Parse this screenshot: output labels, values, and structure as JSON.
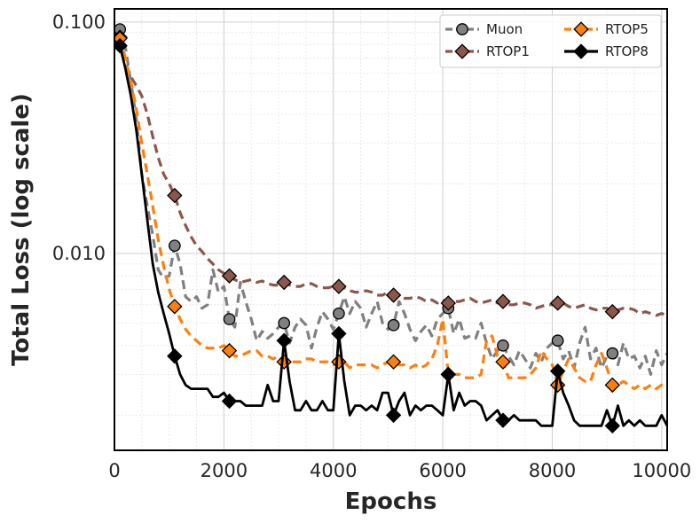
{
  "chart_data": {
    "type": "line",
    "xlabel": "Epochs",
    "ylabel": "Total Loss (log scale)",
    "yscale": "log",
    "xlim": [
      0,
      10100
    ],
    "ylim": [
      0.00141,
      0.114
    ],
    "grid": true,
    "legend_position": "top-right",
    "legend_columns": 2,
    "x_ticks": [
      {
        "value": 0,
        "label": "0"
      },
      {
        "value": 2000,
        "label": "2000"
      },
      {
        "value": 4000,
        "label": "4000"
      },
      {
        "value": 6000,
        "label": "6000"
      },
      {
        "value": 8000,
        "label": "8000"
      },
      {
        "value": 10000,
        "label": "10000"
      }
    ],
    "y_ticks": [
      {
        "value": 0.01,
        "label": "0.010"
      },
      {
        "value": 0.1,
        "label": "0.100"
      }
    ],
    "series": [
      {
        "name": "Muon",
        "color": "#808080",
        "marker": "circle",
        "marker_color": "#808080",
        "dash": "dashed",
        "x": [
          100,
          200,
          300,
          400,
          500,
          600,
          700,
          800,
          900,
          1000,
          1100,
          1200,
          1300,
          1400,
          1500,
          1600,
          1700,
          1800,
          1900,
          2000,
          2100,
          2200,
          2300,
          2400,
          2500,
          2600,
          2700,
          2800,
          2900,
          3000,
          3100,
          3200,
          3300,
          3400,
          3500,
          3600,
          3700,
          3800,
          3900,
          4000,
          4100,
          4200,
          4300,
          4400,
          4500,
          4600,
          4700,
          4800,
          4900,
          5000,
          5100,
          5200,
          5300,
          5400,
          5500,
          5600,
          5700,
          5800,
          5900,
          6000,
          6100,
          6200,
          6300,
          6400,
          6500,
          6600,
          6700,
          6800,
          6900,
          7000,
          7100,
          7200,
          7300,
          7400,
          7500,
          7600,
          7700,
          7800,
          7900,
          8000,
          8100,
          8200,
          8300,
          8400,
          8500,
          8600,
          8700,
          8800,
          8900,
          9000,
          9100,
          9200,
          9300,
          9400,
          9500,
          9600,
          9700,
          9800,
          9900,
          10000,
          10100
        ],
        "values": [
          0.093,
          0.078,
          0.055,
          0.038,
          0.022,
          0.016,
          0.012,
          0.0085,
          0.0078,
          0.008,
          0.0108,
          0.009,
          0.0065,
          0.0062,
          0.0065,
          0.0058,
          0.006,
          0.0085,
          0.0068,
          0.0072,
          0.0052,
          0.0048,
          0.0075,
          0.0062,
          0.0052,
          0.0042,
          0.0046,
          0.0043,
          0.0045,
          0.0048,
          0.005,
          0.0041,
          0.0048,
          0.0052,
          0.0049,
          0.0039,
          0.0048,
          0.0056,
          0.0052,
          0.0047,
          0.0055,
          0.0065,
          0.0055,
          0.0062,
          0.0058,
          0.0048,
          0.0055,
          0.0062,
          0.005,
          0.0047,
          0.0049,
          0.0062,
          0.0055,
          0.0047,
          0.0042,
          0.0046,
          0.0049,
          0.0044,
          0.0052,
          0.0055,
          0.0058,
          0.0045,
          0.0052,
          0.0043,
          0.0044,
          0.0043,
          0.005,
          0.0041,
          0.0035,
          0.0038,
          0.004,
          0.0036,
          0.0033,
          0.0038,
          0.0035,
          0.0032,
          0.0037,
          0.0034,
          0.0039,
          0.0041,
          0.0042,
          0.0035,
          0.0038,
          0.0032,
          0.0041,
          0.0048,
          0.0035,
          0.0039,
          0.0032,
          0.0036,
          0.0037,
          0.0033,
          0.0041,
          0.0035,
          0.0036,
          0.0032,
          0.0036,
          0.003,
          0.0038,
          0.0033,
          0.0037
        ],
        "markers_at": [
          100,
          1100,
          2100,
          3100,
          4100,
          5100,
          6100,
          7100,
          8100,
          9100
        ]
      },
      {
        "name": "RTOP1",
        "color": "#8c564b",
        "marker": "diamond",
        "marker_color": "#8c564b",
        "dash": "dashed",
        "x": [
          100,
          200,
          300,
          400,
          500,
          600,
          700,
          800,
          900,
          1000,
          1100,
          1200,
          1300,
          1400,
          1500,
          1600,
          1700,
          1800,
          1900,
          2000,
          2100,
          2200,
          2300,
          2400,
          2500,
          2600,
          2700,
          2800,
          2900,
          3000,
          3100,
          3200,
          3300,
          3400,
          3500,
          3600,
          3700,
          3800,
          3900,
          4000,
          4100,
          4200,
          4300,
          4400,
          4500,
          4600,
          4700,
          4800,
          4900,
          5000,
          5100,
          5200,
          5300,
          5400,
          5500,
          5600,
          5700,
          5800,
          5900,
          6000,
          6100,
          6200,
          6300,
          6400,
          6500,
          6600,
          6700,
          6800,
          6900,
          7000,
          7100,
          7200,
          7300,
          7400,
          7500,
          7600,
          7700,
          7800,
          7900,
          8000,
          8100,
          8200,
          8300,
          8400,
          8500,
          8600,
          8700,
          8800,
          8900,
          9000,
          9100,
          9200,
          9300,
          9400,
          9500,
          9600,
          9700,
          9800,
          9900,
          10000,
          10100
        ],
        "values": [
          0.086,
          0.065,
          0.058,
          0.053,
          0.048,
          0.04,
          0.032,
          0.026,
          0.022,
          0.02,
          0.0178,
          0.015,
          0.0132,
          0.0118,
          0.0108,
          0.0102,
          0.0095,
          0.009,
          0.0085,
          0.0082,
          0.008,
          0.0077,
          0.0075,
          0.0076,
          0.0077,
          0.0075,
          0.0076,
          0.0074,
          0.0073,
          0.0073,
          0.0075,
          0.0073,
          0.0072,
          0.0072,
          0.0074,
          0.0074,
          0.0072,
          0.0071,
          0.0071,
          0.0072,
          0.0072,
          0.0071,
          0.0069,
          0.0068,
          0.0068,
          0.0069,
          0.0068,
          0.0066,
          0.0066,
          0.0068,
          0.0066,
          0.0065,
          0.0064,
          0.0064,
          0.0065,
          0.0064,
          0.0062,
          0.0063,
          0.0061,
          0.0063,
          0.0061,
          0.0062,
          0.0062,
          0.0063,
          0.0064,
          0.0062,
          0.0061,
          0.0062,
          0.0063,
          0.0061,
          0.0062,
          0.006,
          0.006,
          0.0061,
          0.0061,
          0.006,
          0.0058,
          0.0059,
          0.006,
          0.006,
          0.0061,
          0.0061,
          0.0059,
          0.0058,
          0.0059,
          0.006,
          0.0058,
          0.0057,
          0.0058,
          0.0058,
          0.0056,
          0.0057,
          0.0058,
          0.0058,
          0.0057,
          0.0055,
          0.0056,
          0.0055,
          0.0054,
          0.0055,
          0.0054
        ],
        "markers_at": [
          100,
          1100,
          2100,
          3100,
          4100,
          5100,
          6100,
          7100,
          8100,
          9100
        ]
      },
      {
        "name": "RTOP5",
        "color": "#ff7f0e",
        "marker": "diamond",
        "marker_color": "#ff7f0e",
        "dash": "dashed",
        "x": [
          100,
          200,
          300,
          400,
          500,
          600,
          700,
          800,
          900,
          1000,
          1100,
          1200,
          1300,
          1400,
          1500,
          1600,
          1700,
          1800,
          1900,
          2000,
          2100,
          2200,
          2300,
          2400,
          2500,
          2600,
          2700,
          2800,
          2900,
          3000,
          3100,
          3200,
          3300,
          3400,
          3500,
          3600,
          3700,
          3800,
          3900,
          4000,
          4100,
          4200,
          4300,
          4400,
          4500,
          4600,
          4700,
          4800,
          4900,
          5000,
          5100,
          5200,
          5300,
          5400,
          5500,
          5600,
          5700,
          5800,
          5900,
          6000,
          6100,
          6200,
          6300,
          6400,
          6500,
          6600,
          6700,
          6800,
          6900,
          7000,
          7100,
          7200,
          7300,
          7400,
          7500,
          7600,
          7700,
          7800,
          7900,
          8000,
          8100,
          8200,
          8300,
          8400,
          8500,
          8600,
          8700,
          8800,
          8900,
          9000,
          9100,
          9200,
          9300,
          9400,
          9500,
          9600,
          9700,
          9800,
          9900,
          10000,
          10100
        ],
        "values": [
          0.085,
          0.07,
          0.055,
          0.042,
          0.03,
          0.022,
          0.016,
          0.0115,
          0.0088,
          0.007,
          0.0059,
          0.0052,
          0.0047,
          0.0044,
          0.0042,
          0.004,
          0.0039,
          0.0039,
          0.0039,
          0.004,
          0.0038,
          0.0036,
          0.0036,
          0.0037,
          0.0038,
          0.0038,
          0.0036,
          0.0036,
          0.0035,
          0.0036,
          0.0034,
          0.0034,
          0.0034,
          0.0034,
          0.0035,
          0.0035,
          0.0034,
          0.0034,
          0.0034,
          0.0033,
          0.0034,
          0.0034,
          0.0032,
          0.0033,
          0.0033,
          0.0033,
          0.0033,
          0.0032,
          0.0033,
          0.0034,
          0.0034,
          0.0033,
          0.0033,
          0.0032,
          0.0033,
          0.0032,
          0.0033,
          0.0035,
          0.004,
          0.0052,
          0.003,
          0.003,
          0.003,
          0.0029,
          0.0029,
          0.0029,
          0.003,
          0.0042,
          0.0044,
          0.0036,
          0.0034,
          0.0029,
          0.0029,
          0.0029,
          0.0029,
          0.003,
          0.0032,
          0.0038,
          0.0035,
          0.0033,
          0.0027,
          0.0031,
          0.0035,
          0.0032,
          0.0029,
          0.0028,
          0.0028,
          0.0033,
          0.0037,
          0.0032,
          0.0027,
          0.0027,
          0.0028,
          0.0027,
          0.0026,
          0.0027,
          0.0026,
          0.0027,
          0.0026,
          0.0027,
          0.0026
        ],
        "markers_at": [
          100,
          1100,
          2100,
          3100,
          4100,
          5100,
          6100,
          7100,
          8100,
          9100
        ]
      },
      {
        "name": "RTOP8",
        "color": "#000000",
        "marker": "diamond",
        "marker_color": "#000000",
        "dash": "solid",
        "x": [
          100,
          200,
          300,
          400,
          500,
          600,
          700,
          800,
          900,
          1000,
          1100,
          1200,
          1300,
          1400,
          1500,
          1600,
          1700,
          1800,
          1900,
          2000,
          2100,
          2200,
          2300,
          2400,
          2500,
          2600,
          2700,
          2800,
          2900,
          3000,
          3100,
          3200,
          3300,
          3400,
          3500,
          3600,
          3700,
          3800,
          3900,
          4000,
          4100,
          4200,
          4300,
          4400,
          4500,
          4600,
          4700,
          4800,
          4900,
          5000,
          5100,
          5200,
          5300,
          5400,
          5500,
          5600,
          5700,
          5800,
          5900,
          6000,
          6100,
          6200,
          6300,
          6400,
          6500,
          6600,
          6700,
          6800,
          6900,
          7000,
          7100,
          7200,
          7300,
          7400,
          7500,
          7600,
          7700,
          7800,
          7900,
          8000,
          8100,
          8200,
          8300,
          8400,
          8500,
          8600,
          8700,
          8800,
          8900,
          9000,
          9100,
          9200,
          9300,
          9400,
          9500,
          9600,
          9700,
          9800,
          9900,
          10000,
          10100
        ],
        "values": [
          0.079,
          0.063,
          0.048,
          0.034,
          0.022,
          0.014,
          0.009,
          0.0068,
          0.0055,
          0.0045,
          0.0036,
          0.003,
          0.0027,
          0.0026,
          0.0026,
          0.0026,
          0.0026,
          0.0024,
          0.0024,
          0.0025,
          0.0023,
          0.0023,
          0.0023,
          0.0022,
          0.0022,
          0.0022,
          0.0022,
          0.0027,
          0.0023,
          0.0023,
          0.0042,
          0.0028,
          0.0021,
          0.0021,
          0.0023,
          0.0021,
          0.0021,
          0.0023,
          0.0021,
          0.0021,
          0.0045,
          0.0028,
          0.002,
          0.0022,
          0.0022,
          0.0021,
          0.0022,
          0.0021,
          0.0025,
          0.0025,
          0.002,
          0.0023,
          0.0025,
          0.002,
          0.0022,
          0.0021,
          0.0022,
          0.0022,
          0.0021,
          0.002,
          0.003,
          0.0021,
          0.0025,
          0.0022,
          0.0023,
          0.0023,
          0.0022,
          0.0019,
          0.002,
          0.0021,
          0.0019,
          0.0019,
          0.002,
          0.0019,
          0.0019,
          0.0019,
          0.0019,
          0.0018,
          0.0018,
          0.0018,
          0.0031,
          0.0025,
          0.0022,
          0.0019,
          0.0018,
          0.0018,
          0.0018,
          0.0018,
          0.0018,
          0.0021,
          0.0018,
          0.0022,
          0.0018,
          0.0019,
          0.0018,
          0.0019,
          0.0018,
          0.0018,
          0.0018,
          0.002,
          0.0018
        ],
        "markers_at": [
          100,
          1100,
          2100,
          3100,
          4100,
          5100,
          6100,
          7100,
          8100,
          9100
        ]
      }
    ]
  }
}
